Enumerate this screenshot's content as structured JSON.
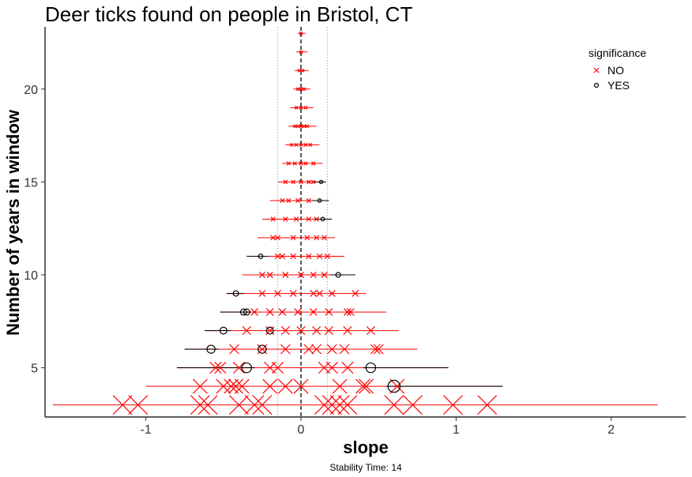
{
  "chart_data": {
    "type": "scatter",
    "title": "Deer ticks found on people in Bristol, CT",
    "xlabel": "slope",
    "ylabel": "Number of years in window",
    "caption": "Stability Time: 14",
    "xlim": [
      -1.65,
      2.48
    ],
    "ylim": [
      2.35,
      23.35
    ],
    "x_ticks": [
      -1,
      0,
      1,
      2
    ],
    "x_tick_labels": [
      "-1",
      "0",
      "1",
      "2"
    ],
    "y_ticks": [
      5,
      10,
      15,
      20
    ],
    "y_tick_labels": [
      "5",
      "10",
      "15",
      "20"
    ],
    "reference_line": 0,
    "dotted_lines": [
      -0.15,
      0.17
    ],
    "grid": false,
    "legend": {
      "title": "significance",
      "position": "top-right",
      "entries": [
        {
          "label": "NO",
          "marker": "x",
          "color": "#ff0000"
        },
        {
          "label": "YES",
          "marker": "circle",
          "color": "#000000"
        }
      ]
    },
    "windows": [
      {
        "n": 3,
        "range": [
          -1.6,
          2.3
        ],
        "no": [
          -1.15,
          -1.05,
          -0.65,
          -0.6,
          -0.4,
          -0.3,
          -0.25,
          0.15,
          0.2,
          0.25,
          0.3,
          0.6,
          0.72,
          0.98,
          1.2
        ],
        "yes": []
      },
      {
        "n": 4,
        "range": [
          -1.0,
          1.3
        ],
        "no": [
          -0.65,
          -0.5,
          -0.45,
          -0.42,
          -0.38,
          -0.2,
          -0.1,
          0.0,
          0.25,
          0.4,
          0.42,
          0.62
        ],
        "yes": [
          0.6
        ]
      },
      {
        "n": 5,
        "range": [
          -0.8,
          0.95
        ],
        "no": [
          -0.55,
          -0.52,
          -0.4,
          -0.2,
          -0.15,
          0.15,
          0.2,
          0.3
        ],
        "yes": [
          -0.35,
          0.45
        ]
      },
      {
        "n": 6,
        "range": [
          -0.75,
          0.75
        ],
        "no": [
          -0.43,
          -0.25,
          -0.1,
          0.05,
          0.1,
          0.2,
          0.28,
          0.48,
          0.5
        ],
        "yes": [
          -0.58,
          -0.25
        ]
      },
      {
        "n": 7,
        "range": [
          -0.62,
          0.63
        ],
        "no": [
          -0.35,
          -0.2,
          -0.1,
          0.0,
          0.1,
          0.18,
          0.3,
          0.45
        ],
        "yes": [
          -0.5,
          -0.2
        ]
      },
      {
        "n": 8,
        "range": [
          -0.52,
          0.55
        ],
        "no": [
          -0.3,
          -0.2,
          -0.12,
          -0.02,
          0.08,
          0.18,
          0.3,
          0.32
        ],
        "yes": [
          -0.37,
          -0.35
        ]
      },
      {
        "n": 9,
        "range": [
          -0.48,
          0.42
        ],
        "no": [
          -0.25,
          -0.15,
          -0.05,
          0.08,
          0.12,
          0.2,
          0.35
        ],
        "yes": [
          -0.42
        ]
      },
      {
        "n": 10,
        "range": [
          -0.38,
          0.35
        ],
        "no": [
          -0.25,
          -0.2,
          -0.1,
          0.0,
          0.08,
          0.15
        ],
        "yes": [
          0.24
        ]
      },
      {
        "n": 11,
        "range": [
          -0.35,
          0.28
        ],
        "no": [
          -0.15,
          -0.12,
          -0.05,
          0.05,
          0.12,
          0.17
        ],
        "yes": [
          -0.26
        ]
      },
      {
        "n": 12,
        "range": [
          -0.28,
          0.22
        ],
        "no": [
          -0.18,
          -0.15,
          -0.05,
          0.04,
          0.1,
          0.15
        ],
        "yes": []
      },
      {
        "n": 13,
        "range": [
          -0.25,
          0.2
        ],
        "no": [
          -0.18,
          -0.1,
          -0.03,
          0.05,
          0.1
        ],
        "yes": [
          0.14
        ]
      },
      {
        "n": 14,
        "range": [
          -0.2,
          0.18
        ],
        "no": [
          -0.12,
          -0.08,
          -0.02,
          0.05
        ],
        "yes": [
          0.12
        ]
      },
      {
        "n": 15,
        "range": [
          -0.15,
          0.16
        ],
        "no": [
          -0.1,
          -0.05,
          0.0,
          0.05,
          0.08
        ],
        "yes": [
          0.13
        ]
      },
      {
        "n": 16,
        "range": [
          -0.12,
          0.14
        ],
        "no": [
          -0.08,
          -0.04,
          0.0,
          0.03,
          0.08
        ],
        "yes": []
      },
      {
        "n": 17,
        "range": [
          -0.1,
          0.12
        ],
        "no": [
          -0.06,
          -0.03,
          0.0,
          0.03,
          0.06
        ],
        "yes": []
      },
      {
        "n": 18,
        "range": [
          -0.08,
          0.1
        ],
        "no": [
          -0.04,
          -0.02,
          0.0,
          0.02,
          0.04
        ],
        "yes": []
      },
      {
        "n": 19,
        "range": [
          -0.07,
          0.08
        ],
        "no": [
          -0.03,
          0.0,
          0.03
        ],
        "yes": []
      },
      {
        "n": 20,
        "range": [
          -0.05,
          0.06
        ],
        "no": [
          -0.02,
          0.0,
          0.02
        ],
        "yes": []
      },
      {
        "n": 21,
        "range": [
          -0.04,
          0.05
        ],
        "no": [
          -0.01,
          0.01
        ],
        "yes": []
      },
      {
        "n": 22,
        "range": [
          -0.03,
          0.04
        ],
        "no": [
          0.0
        ],
        "yes": []
      },
      {
        "n": 23,
        "range": [
          -0.02,
          0.03
        ],
        "no": [
          0.0
        ],
        "yes": []
      }
    ]
  }
}
